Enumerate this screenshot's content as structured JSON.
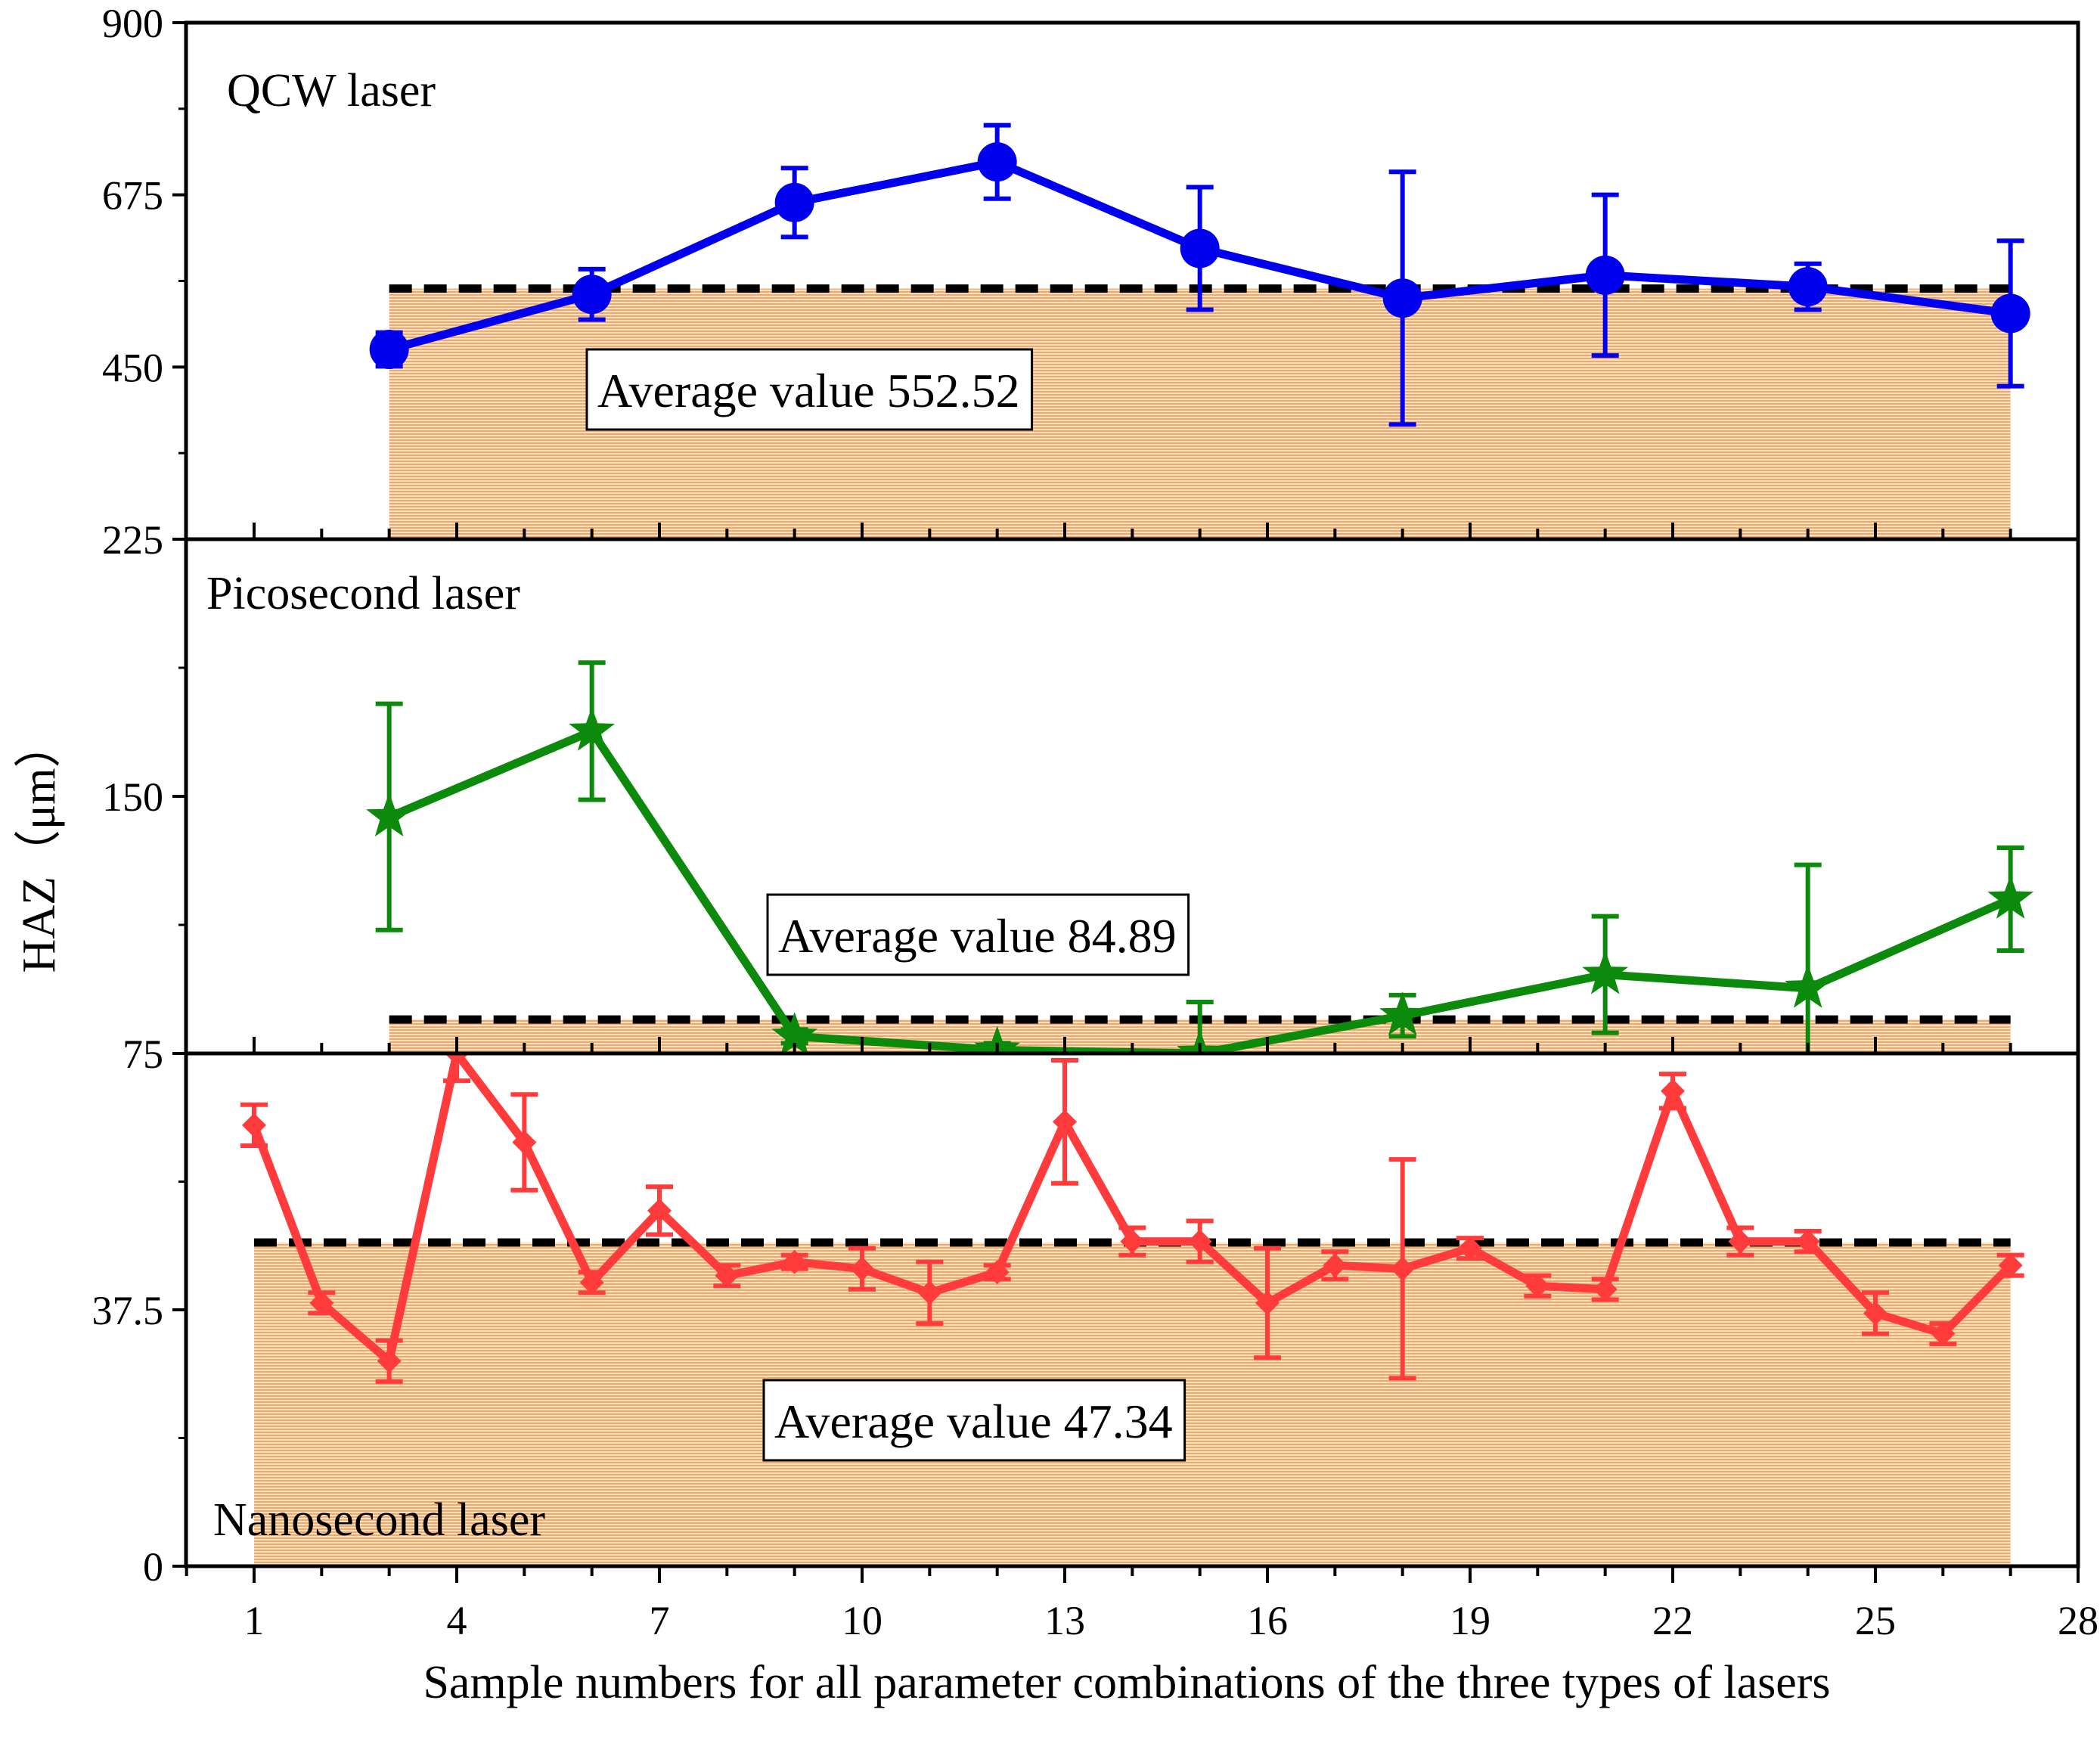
{
  "colors": {
    "qcw": "#0000ee",
    "pico": "#0b8a0b",
    "nano": "#ff3b3b",
    "fill": "#f6b677",
    "avg_line": "#000000"
  },
  "chart_data": {
    "type": "line",
    "xlabel": "Sample numbers for all parameter combinations of the three types of lasers",
    "ylabel": "HAZ（μm）",
    "x_ticks": [
      "1",
      "4",
      "7",
      "10",
      "13",
      "16",
      "19",
      "22",
      "25",
      "28"
    ],
    "xlim": [
      0,
      28
    ],
    "panels": [
      {
        "key": "qcw",
        "title": "QCW laser",
        "series_name": "QCW laser",
        "ylim": [
          225,
          900
        ],
        "y_ticks": [
          "900",
          "675",
          "450",
          "225"
        ],
        "y_tick_values": [
          900,
          675,
          450,
          225
        ],
        "marker": "circle",
        "average_value": 552.52,
        "average_label": "Average value 552.52",
        "x_range": [
          3,
          27
        ],
        "x": [
          3,
          6,
          9,
          12,
          15,
          18,
          21,
          24,
          27
        ],
        "y": [
          473,
          545,
          665,
          718,
          605,
          540,
          570,
          555,
          520
        ],
        "err": [
          22,
          33,
          45,
          48,
          80,
          165,
          105,
          30,
          95
        ]
      },
      {
        "key": "pico",
        "title": "Picosecond laser",
        "series_name": "Picosecond laser",
        "ylim": [
          75,
          225
        ],
        "y_ticks": [
          "225",
          "150",
          "75"
        ],
        "y_tick_values": [
          225,
          150,
          75
        ],
        "marker": "star",
        "average_value": 84.89,
        "average_label": "Average value 84.89",
        "x_range": [
          3,
          27
        ],
        "x": [
          3,
          6,
          9,
          12,
          15,
          18,
          21,
          24,
          27
        ],
        "y": [
          144,
          169,
          80,
          76,
          75,
          86,
          98,
          94,
          120
        ],
        "err": [
          33,
          20,
          2,
          2,
          15,
          6,
          17,
          36,
          15
        ]
      },
      {
        "key": "nano",
        "title": "Nanosecond laser",
        "series_name": "Nanosecond laser",
        "ylim": [
          0,
          75
        ],
        "y_ticks": [
          "75",
          "37.5",
          "0"
        ],
        "y_tick_values": [
          75,
          37.5,
          0
        ],
        "marker": "diamond",
        "average_value": 47.34,
        "average_label": "Average value 47.34",
        "x_range": [
          1,
          27
        ],
        "x": [
          1,
          2,
          3,
          4,
          5,
          6,
          7,
          8,
          9,
          10,
          11,
          12,
          13,
          14,
          15,
          16,
          17,
          18,
          19,
          20,
          21,
          22,
          23,
          24,
          25,
          26,
          27
        ],
        "y": [
          64.5,
          38.5,
          30,
          75,
          62,
          41.5,
          52,
          42.5,
          44.5,
          43.5,
          40,
          43,
          65,
          47.5,
          47.5,
          38.5,
          44,
          43.5,
          46.5,
          41,
          40.5,
          69.5,
          47.5,
          47.5,
          37,
          34,
          44
        ],
        "err": [
          3,
          1.5,
          3,
          4,
          7,
          1.5,
          3.5,
          1.5,
          1,
          3,
          4.5,
          1,
          9,
          2,
          3,
          8,
          2,
          16,
          1.5,
          1.5,
          1.5,
          2.5,
          2,
          1.5,
          3,
          1.5,
          1.5
        ]
      }
    ]
  }
}
